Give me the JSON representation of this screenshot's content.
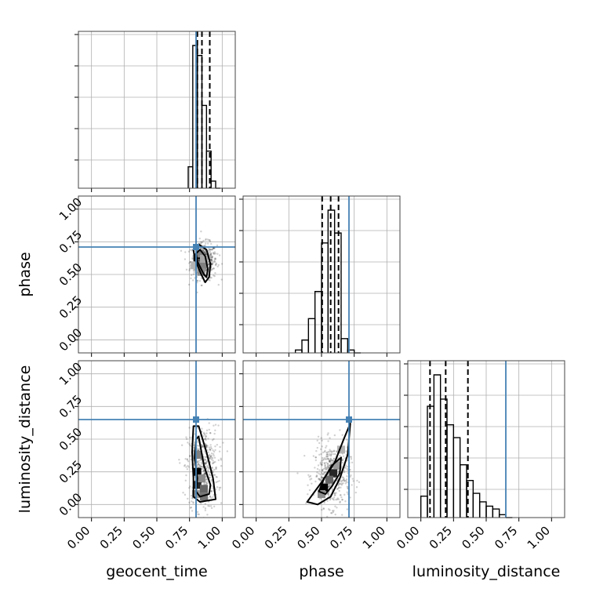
{
  "chart_data": {
    "type": "corner",
    "title": "",
    "parameters": [
      "geocent_time",
      "phase",
      "luminosity_distance"
    ],
    "axis_labels": {
      "geocent_time": "geocent_time",
      "phase": "phase",
      "luminosity_distance": "luminosity_distance"
    },
    "ticks": [
      0.0,
      0.25,
      0.5,
      0.75,
      1.0
    ],
    "tick_labels": [
      "0.00",
      "0.25",
      "0.50",
      "0.75",
      "1.00"
    ],
    "xlim": [
      -0.1,
      1.1
    ],
    "ylim": [
      -0.1,
      1.1
    ],
    "grid": true,
    "colors": {
      "truth": "#4682b4",
      "contour": "#000000",
      "histogram": "#000000",
      "grid": "#b0b0b0"
    },
    "truths": {
      "geocent_time": 0.8,
      "phase": 0.71,
      "luminosity_distance": 0.65
    },
    "histograms": {
      "geocent_time": {
        "edges": [
          0.74,
          0.775,
          0.81,
          0.845,
          0.88,
          0.915,
          0.95,
          0.985
        ],
        "counts": [
          0.15,
          1.0,
          0.93,
          0.58,
          0.26,
          0.05,
          0.0
        ],
        "quantiles": [
          0.81,
          0.845,
          0.905
        ]
      },
      "phase": {
        "edges": [
          0.3,
          0.35,
          0.4,
          0.45,
          0.5,
          0.55,
          0.6,
          0.65,
          0.7,
          0.75,
          0.8
        ],
        "counts": [
          0.02,
          0.09,
          0.24,
          0.43,
          0.77,
          1.0,
          0.84,
          0.1,
          0.02,
          0.0
        ],
        "quantiles": [
          0.505,
          0.57,
          0.63
        ]
      },
      "luminosity_distance": {
        "edges": [
          0.0,
          0.05,
          0.1,
          0.15,
          0.2,
          0.25,
          0.3,
          0.35,
          0.4,
          0.45,
          0.5,
          0.55,
          0.6,
          0.65,
          0.7
        ],
        "counts": [
          0.15,
          0.78,
          1.0,
          0.83,
          0.65,
          0.56,
          0.37,
          0.26,
          0.17,
          0.11,
          0.08,
          0.06,
          0.02,
          0.0
        ],
        "quantiles": [
          0.07,
          0.19,
          0.36
        ]
      }
    },
    "panels_2d": [
      {
        "x": "geocent_time",
        "y": "phase",
        "contours": [
          [
            [
              0.81,
              0.6
            ],
            [
              0.8,
              0.66
            ],
            [
              0.83,
              0.69
            ],
            [
              0.87,
              0.64
            ],
            [
              0.89,
              0.54
            ],
            [
              0.88,
              0.48
            ],
            [
              0.86,
              0.5
            ]
          ],
          [
            [
              0.79,
              0.62
            ],
            [
              0.78,
              0.69
            ],
            [
              0.82,
              0.73
            ],
            [
              0.88,
              0.69
            ],
            [
              0.91,
              0.58
            ],
            [
              0.9,
              0.48
            ],
            [
              0.87,
              0.44
            ],
            [
              0.84,
              0.5
            ]
          ]
        ],
        "density": [
          [
            0.81,
            0.63,
            1.0
          ],
          [
            0.82,
            0.59,
            0.7
          ],
          [
            0.85,
            0.57,
            0.5
          ],
          [
            0.84,
            0.52,
            0.45
          ],
          [
            0.83,
            0.66,
            0.5
          ],
          [
            0.86,
            0.62,
            0.35
          ],
          [
            0.79,
            0.57,
            0.3
          ]
        ],
        "scatter_spread": [
          0.05,
          0.07
        ],
        "scatter_center": [
          0.86,
          0.6
        ]
      },
      {
        "x": "geocent_time",
        "y": "luminosity_distance",
        "contours": [
          [
            [
              0.8,
              0.5
            ],
            [
              0.79,
              0.35
            ],
            [
              0.81,
              0.2
            ],
            [
              0.8,
              0.1
            ],
            [
              0.83,
              0.06
            ],
            [
              0.9,
              0.08
            ],
            [
              0.91,
              0.15
            ],
            [
              0.86,
              0.3
            ],
            [
              0.82,
              0.52
            ]
          ],
          [
            [
              0.78,
              0.6
            ],
            [
              0.77,
              0.4
            ],
            [
              0.78,
              0.2
            ],
            [
              0.78,
              0.06
            ],
            [
              0.83,
              0.02
            ],
            [
              0.95,
              0.04
            ],
            [
              0.93,
              0.2
            ],
            [
              0.88,
              0.4
            ],
            [
              0.82,
              0.6
            ]
          ]
        ],
        "density": [
          [
            0.81,
            0.25,
            1.0
          ],
          [
            0.81,
            0.15,
            0.85
          ],
          [
            0.86,
            0.12,
            0.6
          ],
          [
            0.81,
            0.38,
            0.5
          ],
          [
            0.84,
            0.2,
            0.45
          ],
          [
            0.86,
            0.06,
            0.55
          ],
          [
            0.8,
            0.08,
            0.4
          ]
        ],
        "scatter_spread": [
          0.06,
          0.16
        ],
        "scatter_center": [
          0.85,
          0.28
        ]
      },
      {
        "x": "phase",
        "y": "luminosity_distance",
        "contours": [
          [
            [
              0.48,
              0.1
            ],
            [
              0.52,
              0.2
            ],
            [
              0.58,
              0.3
            ],
            [
              0.65,
              0.36
            ],
            [
              0.64,
              0.24
            ],
            [
              0.58,
              0.14
            ],
            [
              0.53,
              0.08
            ]
          ],
          [
            [
              0.39,
              0.02
            ],
            [
              0.5,
              0.17
            ],
            [
              0.6,
              0.32
            ],
            [
              0.67,
              0.5
            ],
            [
              0.72,
              0.62
            ],
            [
              0.7,
              0.38
            ],
            [
              0.64,
              0.2
            ],
            [
              0.57,
              0.06
            ],
            [
              0.47,
              0.0
            ]
          ]
        ],
        "density": [
          [
            0.52,
            0.13,
            1.0
          ],
          [
            0.59,
            0.24,
            0.85
          ],
          [
            0.56,
            0.19,
            0.6
          ],
          [
            0.62,
            0.3,
            0.4
          ],
          [
            0.5,
            0.08,
            0.45
          ],
          [
            0.65,
            0.42,
            0.3
          ]
        ],
        "scatter_spread": [
          0.07,
          0.12
        ],
        "scatter_center": [
          0.58,
          0.22
        ]
      }
    ]
  }
}
